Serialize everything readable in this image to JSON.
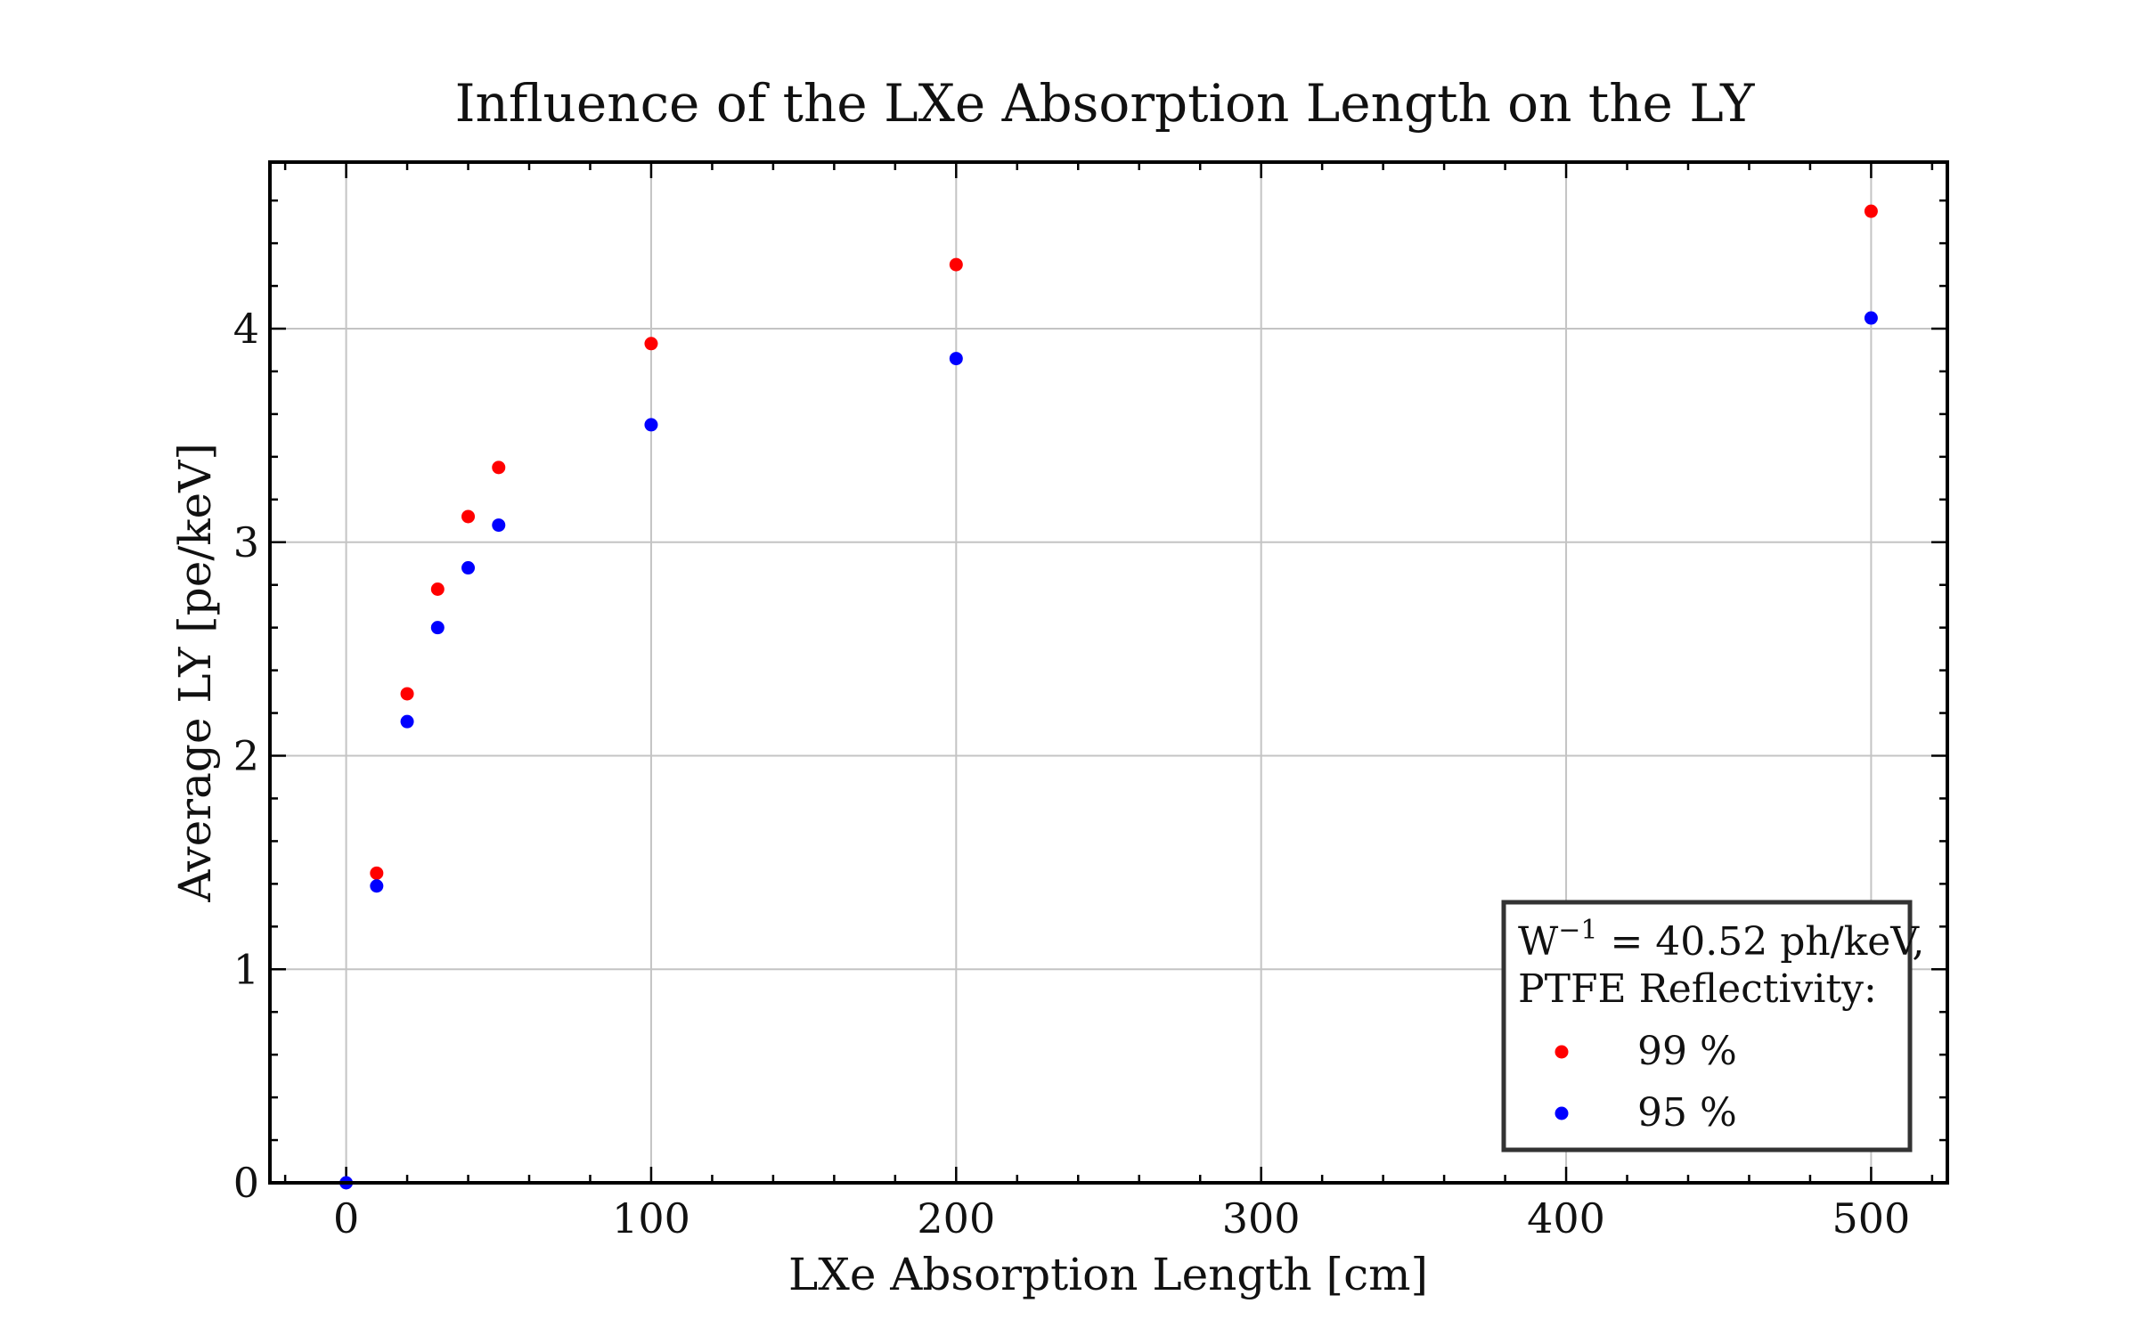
{
  "chart_data": {
    "type": "scatter",
    "title": "Influence of the LXe Absorption Length on the LY",
    "xlabel": "LXe Absorption Length [cm]",
    "ylabel": "Average LY [pe/keV]",
    "xlim": [
      -25,
      525
    ],
    "ylim": [
      0,
      4.78
    ],
    "x_ticks": [
      0,
      100,
      200,
      300,
      400,
      500
    ],
    "y_ticks": [
      0,
      1,
      2,
      3,
      4
    ],
    "grid": true,
    "legend": {
      "placement": "bottom-right",
      "title_line1": "W",
      "title_sup": "−1",
      "title_line1_rest": " = 40.52 ph/keV,",
      "title_line2": "PTFE Reflectivity:"
    },
    "series": [
      {
        "name": "99 %",
        "color": "#ff0000",
        "x": [
          10,
          20,
          30,
          40,
          50,
          100,
          200,
          500
        ],
        "y": [
          1.45,
          2.29,
          2.78,
          3.12,
          3.35,
          3.93,
          4.3,
          4.55
        ]
      },
      {
        "name": "95 %",
        "color": "#0000ff",
        "x": [
          0,
          10,
          20,
          30,
          40,
          50,
          100,
          200,
          500
        ],
        "y": [
          0.0,
          1.39,
          2.16,
          2.6,
          2.88,
          3.08,
          3.55,
          3.86,
          4.05
        ]
      }
    ]
  }
}
